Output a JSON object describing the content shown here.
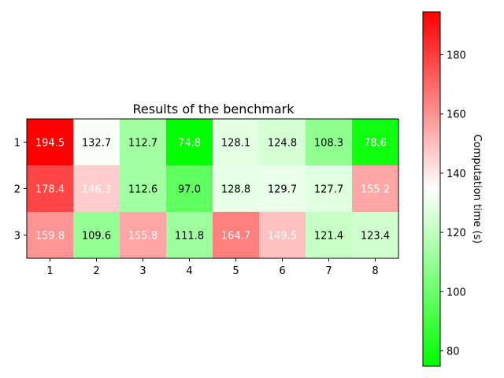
{
  "chart_data": {
    "type": "heatmap",
    "title": "Results of the benchmark",
    "x_ticks": [
      "1",
      "2",
      "3",
      "4",
      "5",
      "6",
      "7",
      "8"
    ],
    "y_ticks": [
      "1",
      "2",
      "3"
    ],
    "values": [
      [
        194.5,
        132.7,
        112.7,
        74.8,
        128.1,
        124.8,
        108.3,
        78.6
      ],
      [
        178.4,
        146.3,
        112.6,
        97.0,
        128.8,
        129.7,
        127.7,
        155.2
      ],
      [
        159.8,
        109.6,
        155.8,
        111.8,
        164.7,
        149.5,
        121.4,
        123.4
      ]
    ],
    "value_labels": [
      [
        "194.5",
        "132.7",
        "112.7",
        "74.8",
        "128.1",
        "124.8",
        "108.3",
        "78.6"
      ],
      [
        "178.4",
        "146.3",
        "112.6",
        "97.0",
        "128.8",
        "129.7",
        "127.7",
        "155.2"
      ],
      [
        "159.8",
        "109.6",
        "155.8",
        "111.8",
        "164.7",
        "149.5",
        "121.4",
        "123.4"
      ]
    ],
    "colorbar": {
      "label": "Computation time (s)",
      "range": [
        74.8,
        194.5
      ],
      "ticks": [
        80,
        100,
        120,
        140,
        160,
        180
      ],
      "tick_labels": [
        "80",
        "100",
        "120",
        "140",
        "160",
        "180"
      ],
      "colors": [
        "#00ff00",
        "#ffffff",
        "#ff0000"
      ]
    },
    "label_text_colors": {
      "light": "#ffffff",
      "dark": "#000000"
    },
    "label_dark_band": [
      97,
      140
    ]
  }
}
